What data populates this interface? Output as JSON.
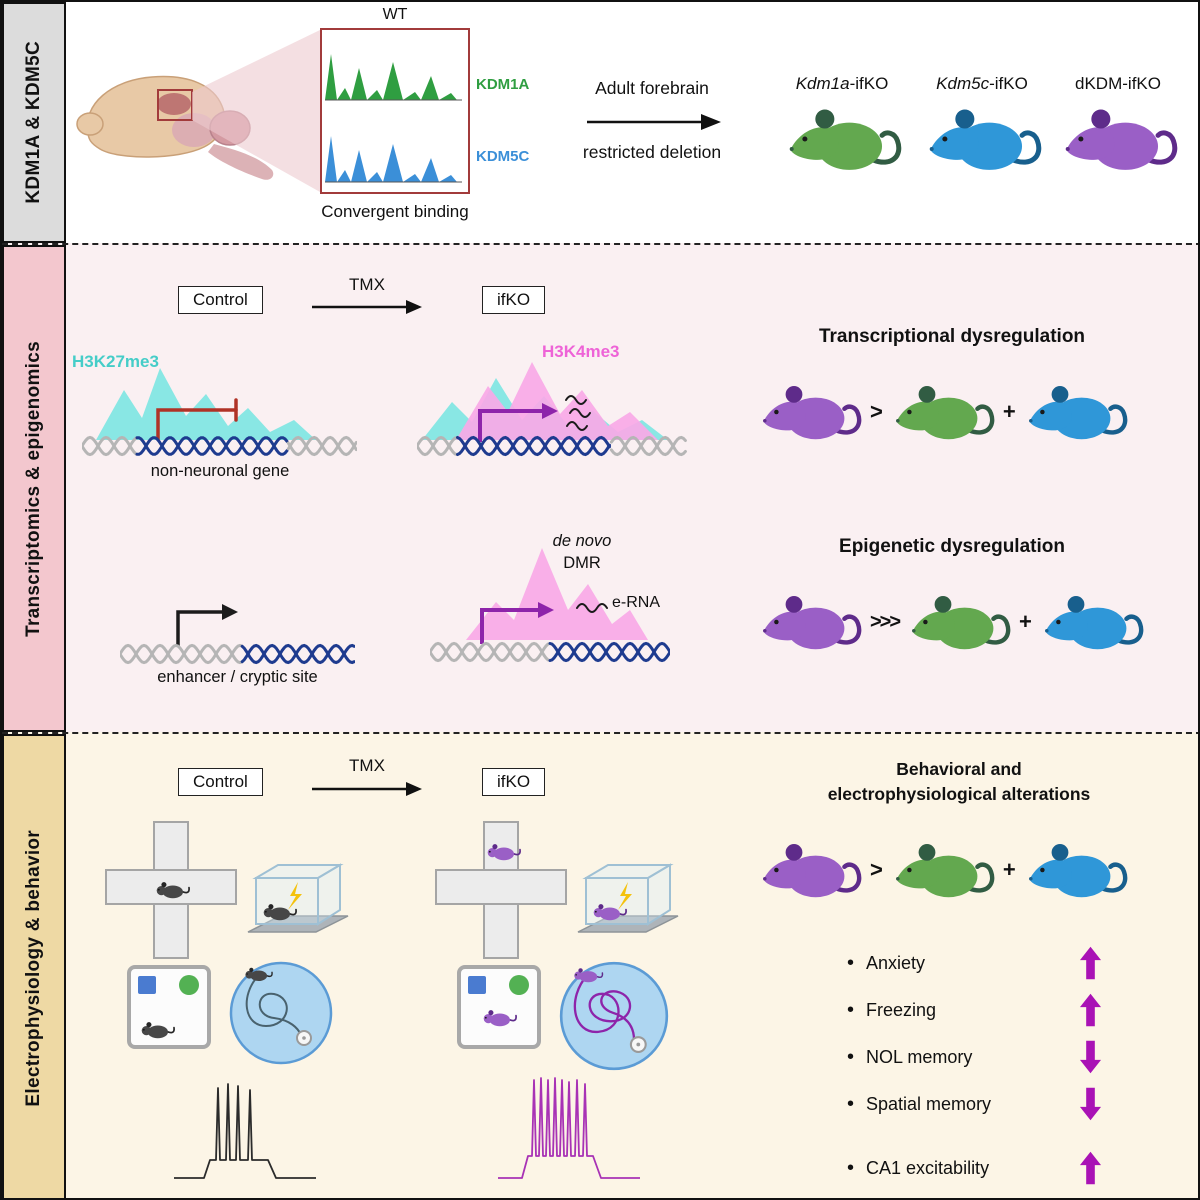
{
  "sidebars": {
    "top": "KDM1A & KDM5C",
    "middle": "Transcriptomics & epigenomics",
    "bottom": "Electrophysiology & behavior"
  },
  "top": {
    "wt": "WT",
    "kdm1a": "KDM1A",
    "kdm5c": "KDM5C",
    "convergent": "Convergent binding",
    "arrow_line1": "Adult forebrain",
    "arrow_line2": "restricted deletion",
    "mouse1_gene": "Kdm1a",
    "mouse1_suffix": "-ifKO",
    "mouse2_gene": "Kdm5c",
    "mouse2_suffix": "-ifKO",
    "mouse3_gene": "dKDM",
    "mouse3_suffix": "-ifKO"
  },
  "middle": {
    "control": "Control",
    "tmx": "TMX",
    "ifko": "ifKO",
    "h3k27me3": "H3K27me3",
    "h3k4me3": "H3K4me3",
    "non_neuronal": "non-neuronal gene",
    "enhancer": "enhancer / cryptic site",
    "de_novo": "de novo",
    "dmr": "DMR",
    "erna": "e-RNA",
    "transcriptional_heading": "Transcriptional dysregulation",
    "epigenetic_heading": "Epigenetic dysregulation",
    "op_gt": ">",
    "op_ggg": ">>>",
    "op_plus": "+"
  },
  "bottom": {
    "control": "Control",
    "tmx": "TMX",
    "ifko": "ifKO",
    "heading1": "Behavioral and",
    "heading2": "electrophysiological alterations",
    "op_gt": ">",
    "op_plus": "+",
    "behaviors": [
      {
        "label": "Anxiety",
        "direction": "up"
      },
      {
        "label": "Freezing",
        "direction": "up"
      },
      {
        "label": "NOL memory",
        "direction": "down"
      },
      {
        "label": "Spatial memory",
        "direction": "down"
      },
      {
        "label": "CA1 excitability",
        "direction": "up"
      }
    ]
  },
  "colors": {
    "green": "#63a84f",
    "green_dark": "#315c43",
    "blue": "#2f97d8",
    "blue_dark": "#185f8d",
    "purple": "#9a5fc6",
    "purple_dark": "#5e2b8a",
    "cyan_fill": "#7ce5e2",
    "cyan_label": "#45cdc8",
    "pink_fill": "#f9a9e7",
    "pink_label": "#ee63d7",
    "track_green": "#2f9e41",
    "track_blue": "#3b8fd8",
    "dna_gray": "#b5b5b5",
    "dna_blue": "#1e3b8f",
    "red": "#b03226",
    "arrow_purple": "#8e24aa",
    "trend_arrow": "#a912b5",
    "pool_fill": "#aed6f1",
    "pool_stroke": "#5b9bd5",
    "trace_control": "#2b2b2b",
    "trace_ifko": "#a832b5",
    "box_border": "#a23b3b"
  }
}
